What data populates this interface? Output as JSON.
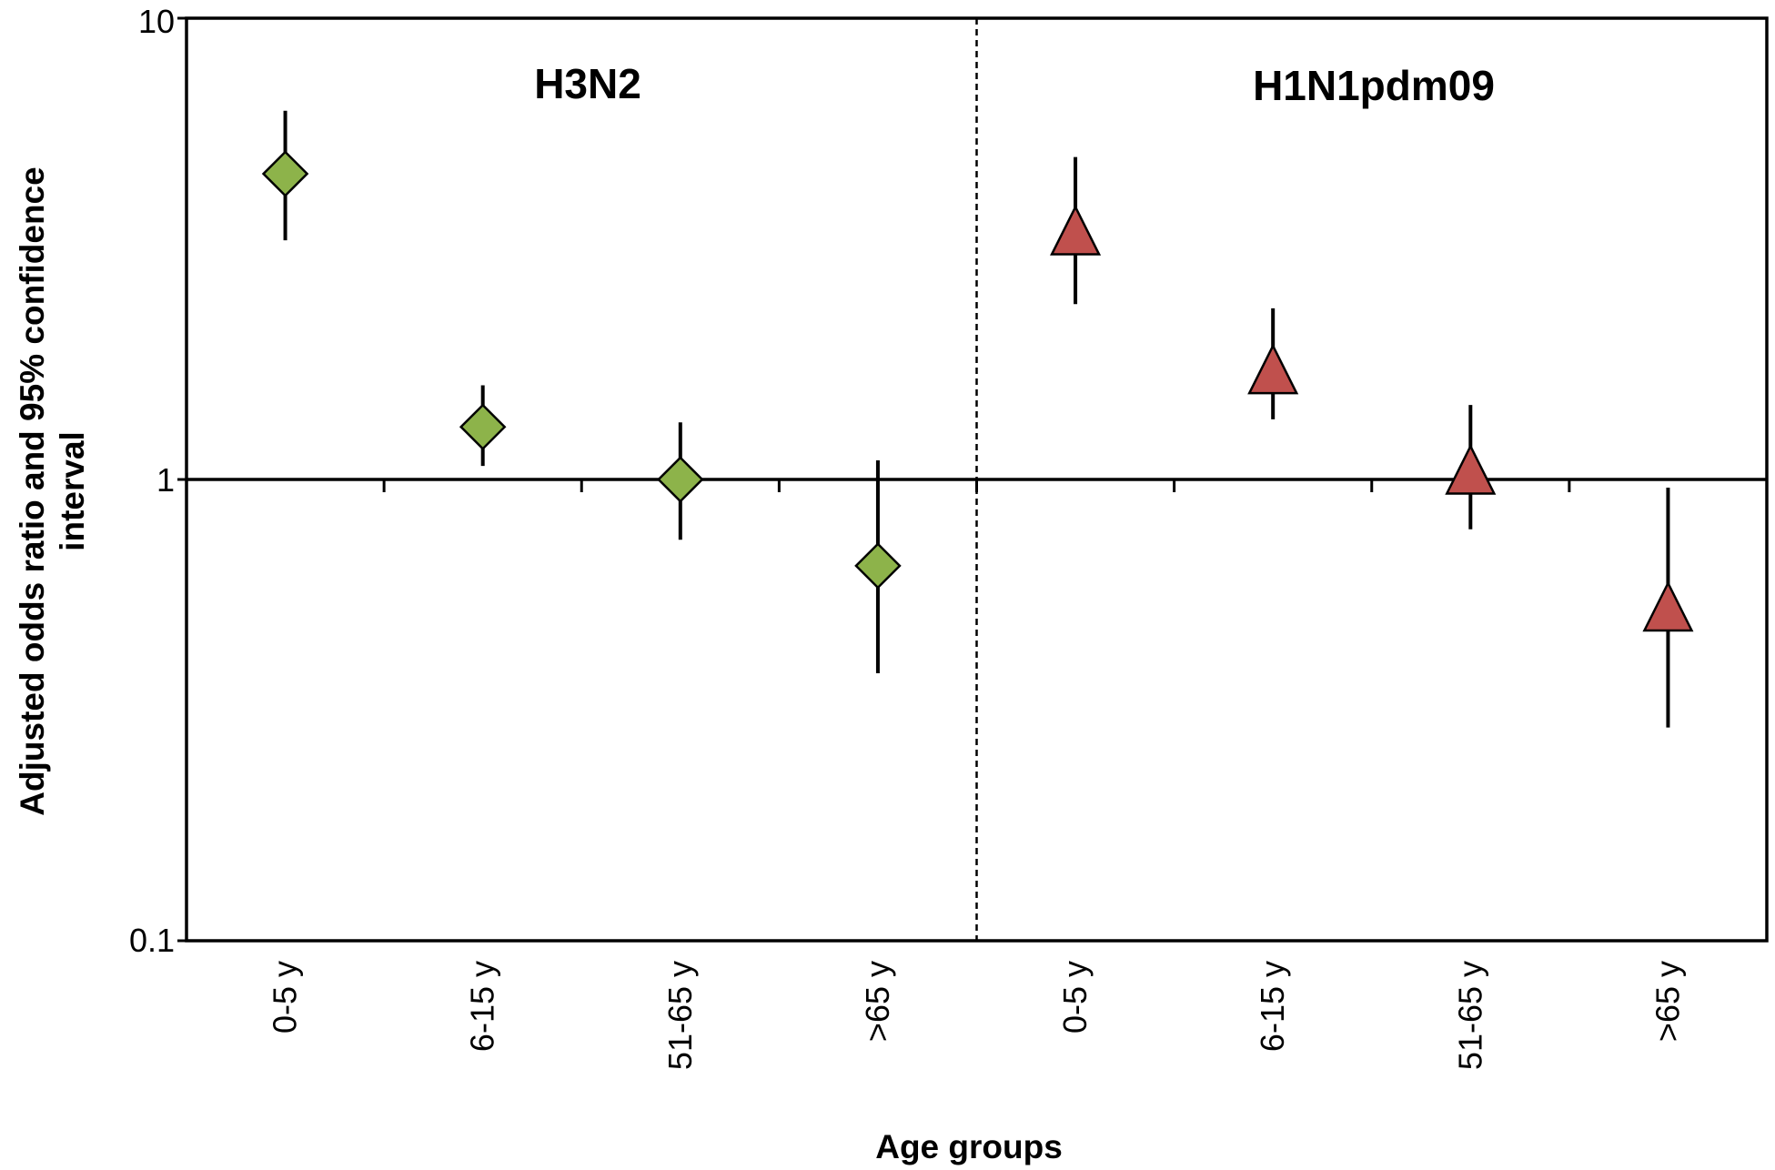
{
  "chart_data": {
    "type": "scatter",
    "yscale": "log",
    "ylim": [
      0.1,
      10
    ],
    "yticks": [
      "0.1",
      "1",
      "10"
    ],
    "ylabel_line1": "Adjusted odds ratio and 95% confidence",
    "ylabel_line2": "interval",
    "xlabel": "Age groups",
    "categories": [
      "0-5 y",
      "6-15 y",
      "51-65 y",
      ">65 y",
      "0-5 y",
      "6-15 y",
      "51-65 y",
      ">65 y"
    ],
    "reference_line": 1,
    "panels": [
      {
        "label": "H3N2",
        "marker": "diamond",
        "color": "#8db34a",
        "points": [
          {
            "category": "0-5 y",
            "or": 4.6,
            "lo": 3.3,
            "hi": 6.3
          },
          {
            "category": "6-15 y",
            "or": 1.3,
            "lo": 1.07,
            "hi": 1.6
          },
          {
            "category": "51-65 y",
            "or": 1.0,
            "lo": 0.74,
            "hi": 1.33
          },
          {
            "category": ">65 y",
            "or": 0.65,
            "lo": 0.38,
            "hi": 1.1
          }
        ]
      },
      {
        "label": "H1N1pdm09",
        "marker": "triangle",
        "color": "#c0504d",
        "points": [
          {
            "category": "0-5 y",
            "or": 3.4,
            "lo": 2.4,
            "hi": 5.0
          },
          {
            "category": "6-15 y",
            "or": 1.7,
            "lo": 1.35,
            "hi": 2.35
          },
          {
            "category": "51-65 y",
            "or": 1.03,
            "lo": 0.78,
            "hi": 1.45
          },
          {
            "category": ">65 y",
            "or": 0.52,
            "lo": 0.29,
            "hi": 0.96
          }
        ]
      }
    ]
  }
}
